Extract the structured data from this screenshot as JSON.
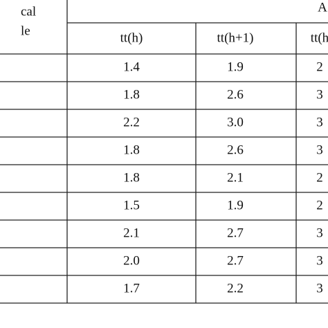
{
  "header": {
    "stub": [
      "cal",
      "le"
    ],
    "group": "A",
    "columns": [
      "tt(h)",
      "tt(h+1)",
      "tt(h"
    ]
  },
  "rows": [
    [
      "1.4",
      "1.9",
      "2"
    ],
    [
      "1.8",
      "2.6",
      "3"
    ],
    [
      "2.2",
      "3.0",
      "3"
    ],
    [
      "1.8",
      "2.6",
      "3"
    ],
    [
      "1.8",
      "2.1",
      "2"
    ],
    [
      "1.5",
      "1.9",
      "2"
    ],
    [
      "2.1",
      "2.7",
      "3"
    ],
    [
      "2.0",
      "2.7",
      "3"
    ],
    [
      "1.7",
      "2.2",
      "3"
    ]
  ]
}
